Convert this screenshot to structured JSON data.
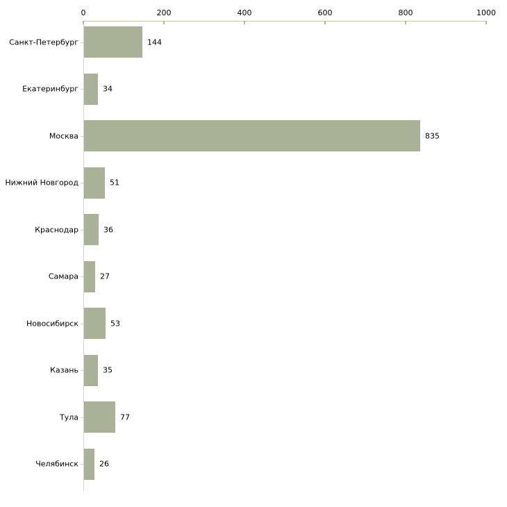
{
  "chart_data": {
    "type": "bar",
    "orientation": "horizontal",
    "title": "",
    "xlabel": "",
    "ylabel": "",
    "categories": [
      "Санкт-Петербург",
      "Екатеринбург",
      "Москва",
      "Нижний Новгород",
      "Краснодар",
      "Самара",
      "Новосибирск",
      "Казань",
      "Тула",
      "Челябинск"
    ],
    "values": [
      144,
      34,
      835,
      51,
      36,
      27,
      53,
      35,
      77,
      26
    ],
    "x_ticks": [
      0,
      200,
      400,
      600,
      800,
      1000
    ],
    "xlim": [
      0,
      1000
    ],
    "grid": "off",
    "legend": "none",
    "value_labels_shown": true,
    "x_axis_position": "top",
    "colors": {
      "bar": "#abb197",
      "x_axis_line": "#c9cba1",
      "x_tick_mark": "#b3b687",
      "y_axis_line": "#d0d0d0",
      "row_tick_mark": "#cfcfcf",
      "text": "#000000",
      "background": "#ffffff"
    }
  }
}
